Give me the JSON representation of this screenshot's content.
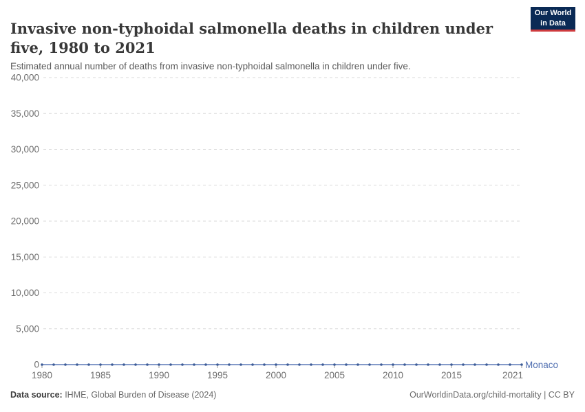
{
  "header": {
    "title": "Invasive non-typhoidal salmonella deaths in children under five, 1980 to 2021",
    "subtitle": "Estimated annual number of deaths from invasive non-typhoidal salmonella in children under five.",
    "logo_line1": "Our World",
    "logo_line2": "in Data",
    "logo_bg_color": "#0a2a55",
    "logo_accent_color": "#cf3b3e"
  },
  "footer": {
    "data_source_label": "Data source:",
    "data_source_value": " IHME, Global Burden of Disease (2024)",
    "attribution": "OurWorldinData.org/child-mortality | CC BY"
  },
  "chart_data": {
    "type": "line",
    "title": "Invasive non-typhoidal salmonella deaths in children under five, 1980 to 2021",
    "xlabel": "",
    "ylabel": "",
    "xlim": [
      1980,
      2021
    ],
    "ylim": [
      0,
      40000
    ],
    "grid": "horizontal-dashed",
    "legend_position": "right-of-line-end",
    "x_ticks": [
      1980,
      1985,
      1990,
      1995,
      2000,
      2005,
      2010,
      2015,
      2021
    ],
    "x_tick_labels": [
      "1980",
      "1985",
      "1990",
      "1995",
      "2000",
      "2005",
      "2010",
      "2015",
      "2021"
    ],
    "y_ticks": [
      0,
      5000,
      10000,
      15000,
      20000,
      25000,
      30000,
      35000,
      40000
    ],
    "y_tick_labels": [
      "0",
      "5,000",
      "10,000",
      "15,000",
      "20,000",
      "25,000",
      "30,000",
      "35,000",
      "40,000"
    ],
    "series": [
      {
        "name": "Monaco",
        "color": "#4f6eb0",
        "line_color": "#5b79b7",
        "dot_color": "#3d5c97",
        "x": [
          1980,
          1981,
          1982,
          1983,
          1984,
          1985,
          1986,
          1987,
          1988,
          1989,
          1990,
          1991,
          1992,
          1993,
          1994,
          1995,
          1996,
          1997,
          1998,
          1999,
          2000,
          2001,
          2002,
          2003,
          2004,
          2005,
          2006,
          2007,
          2008,
          2009,
          2010,
          2011,
          2012,
          2013,
          2014,
          2015,
          2016,
          2017,
          2018,
          2019,
          2020,
          2021
        ],
        "values": [
          0,
          0,
          0,
          0,
          0,
          0,
          0,
          0,
          0,
          0,
          0,
          0,
          0,
          0,
          0,
          0,
          0,
          0,
          0,
          0,
          0,
          0,
          0,
          0,
          0,
          0,
          0,
          0,
          0,
          0,
          0,
          0,
          0,
          0,
          0,
          0,
          0,
          0,
          0,
          0,
          0,
          0
        ]
      }
    ]
  }
}
